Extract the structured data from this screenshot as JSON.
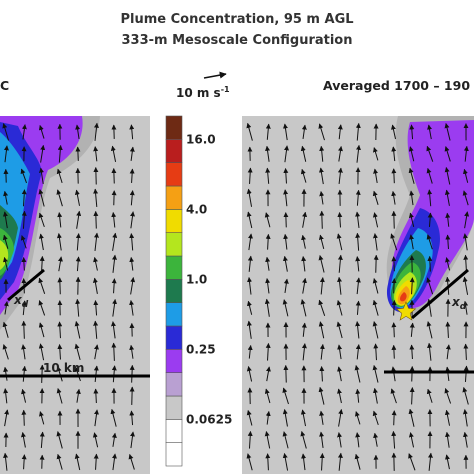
{
  "title": {
    "line1": "Plume Concentration, 95 m AGL",
    "line2": "333-m Mesoscale Configuration"
  },
  "left_panel": {
    "corner_text": "C",
    "scale_label": "10 km",
    "xd_label": "x",
    "xd_sub": "d"
  },
  "right_panel": {
    "corner_text": "Averaged 1700 – 190",
    "xd_label": "x",
    "xd_sub": "d"
  },
  "vector_reference": {
    "label_main": "10 m s",
    "label_exp": "-1"
  },
  "colorbar": {
    "levels": [
      {
        "color": "#ffffff"
      },
      {
        "color": "#ffffff"
      },
      {
        "color": "#c8c8c8"
      },
      {
        "color": "#b9a0d2"
      },
      {
        "color": "#9b3cf0"
      },
      {
        "color": "#2a2ad6"
      },
      {
        "color": "#1e9ce6"
      },
      {
        "color": "#1e7a4e"
      },
      {
        "color": "#3cb43c"
      },
      {
        "color": "#b4e61e"
      },
      {
        "color": "#f0dc00"
      },
      {
        "color": "#f5a014"
      },
      {
        "color": "#e63c14"
      },
      {
        "color": "#b91e1e"
      },
      {
        "color": "#6e2a14"
      }
    ],
    "tick_labels": [
      "0.0625",
      "0.25",
      "1.0",
      "4.0",
      "16.0"
    ]
  },
  "colors": {
    "background": "#c8c8c8",
    "plume_outer": "#9b3cf0",
    "plume_blue": "#2a2ad6",
    "plume_cyan": "#1e9ce6",
    "plume_teal": "#1e7a4e",
    "plume_green": "#3cb43c",
    "plume_lime": "#b4e61e",
    "plume_yellow": "#f0dc00",
    "plume_orange": "#f5a014",
    "plume_red": "#e63c14",
    "source_star": "#f0dc00"
  }
}
